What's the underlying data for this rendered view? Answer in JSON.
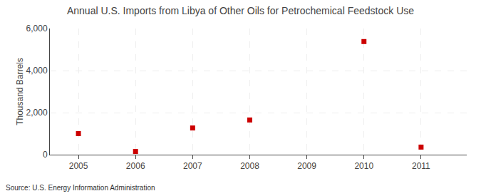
{
  "chart_data": {
    "type": "scatter",
    "title": "Annual U.S. Imports from Libya of Other Oils for Petrochemical Feedstock Use",
    "ylabel": "Thousand Barrels",
    "source": "Source: U.S. Energy Information Administration",
    "x": [
      2005,
      2006,
      2007,
      2008,
      2010,
      2011
    ],
    "values": [
      1000,
      150,
      1270,
      1650,
      5380,
      360
    ],
    "xlim": [
      2004.5,
      2011.8
    ],
    "ylim": [
      0,
      6000
    ],
    "xticks": [
      2005,
      2006,
      2007,
      2008,
      2009,
      2010,
      2011
    ],
    "yticks": [
      0,
      {
        "value": 2000,
        "label": "2,000"
      },
      {
        "value": 4000,
        "label": "4,000"
      },
      {
        "value": 6000,
        "label": "6,000"
      }
    ],
    "color": "#cc0000",
    "marker": "square",
    "grid": true
  }
}
